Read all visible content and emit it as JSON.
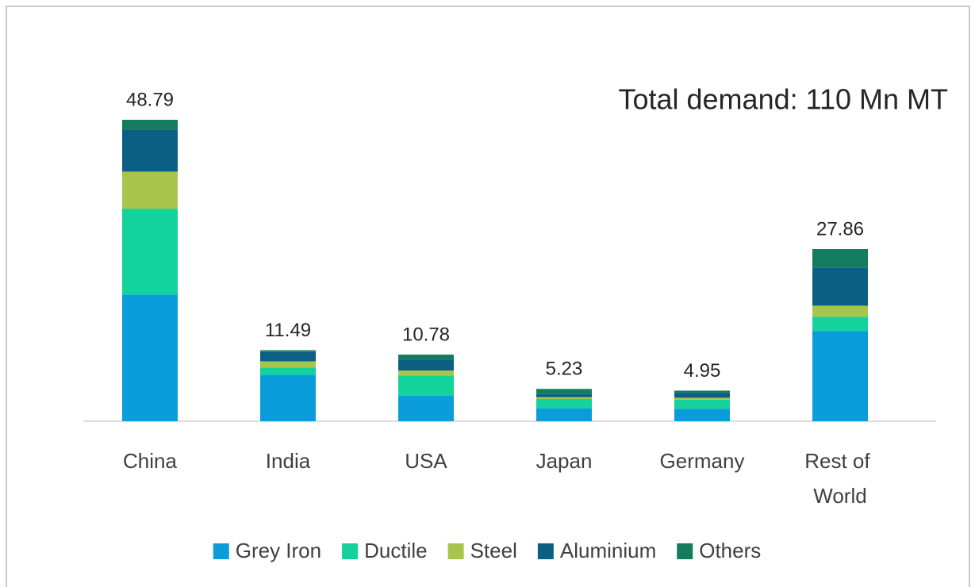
{
  "chart_data": {
    "type": "stacked-bar",
    "annotation": "Total demand: 110 Mn MT",
    "categories": [
      "China",
      "India",
      "USA",
      "Japan",
      "Germany",
      "Rest of World"
    ],
    "totals": [
      48.79,
      11.49,
      10.78,
      5.23,
      4.95,
      27.86
    ],
    "series": [
      {
        "name": "Grey Iron",
        "color": "#0b9ddb",
        "values": [
          20.5,
          7.5,
          4.1,
          2.1,
          2.0,
          14.6
        ]
      },
      {
        "name": "Ductile",
        "color": "#14d29b",
        "values": [
          13.9,
          1.2,
          3.3,
          1.5,
          1.5,
          2.3
        ]
      },
      {
        "name": "Steel",
        "color": "#a8c44a",
        "values": [
          6.0,
          1.0,
          0.8,
          0.3,
          0.3,
          1.8
        ]
      },
      {
        "name": "Aluminium",
        "color": "#0a5f82",
        "values": [
          6.8,
          1.5,
          1.8,
          0.5,
          0.8,
          6.1
        ]
      },
      {
        "name": "Others",
        "color": "#137c5e",
        "values": [
          1.59,
          0.29,
          0.78,
          0.83,
          0.35,
          3.06
        ]
      }
    ],
    "legend": "bottom"
  }
}
